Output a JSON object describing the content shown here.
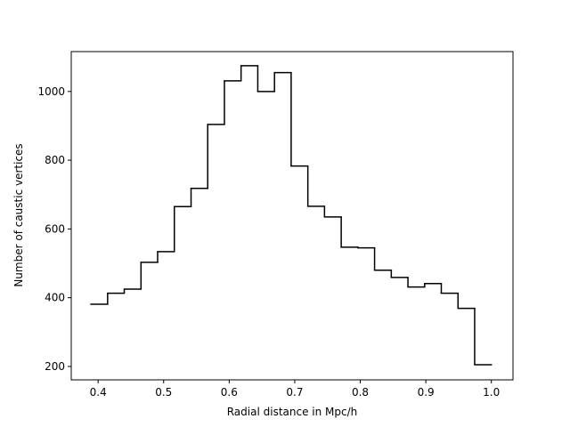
{
  "chart_data": {
    "type": "histogram",
    "x_label": "Radial distance in Mpc/h",
    "y_label": "Number of caustic vertices",
    "bins": [
      0.389,
      0.4145,
      0.4399,
      0.4654,
      0.4908,
      0.5163,
      0.5418,
      0.5672,
      0.5927,
      0.6181,
      0.6436,
      0.6691,
      0.6945,
      0.72,
      0.7454,
      0.7709,
      0.7964,
      0.8218,
      0.8473,
      0.8727,
      0.8982,
      0.9236,
      0.9491,
      0.9745,
      1.0
    ],
    "values": [
      381,
      413,
      425,
      503,
      534,
      665,
      718,
      904,
      1031,
      1075,
      1000,
      1055,
      783,
      666,
      635,
      547,
      545,
      480,
      459,
      431,
      441,
      413,
      369,
      205
    ],
    "color": "#000000",
    "xlim": [
      0.359,
      1.033
    ],
    "ylim": [
      161,
      1116
    ],
    "xticks": [
      0.4,
      0.5,
      0.6,
      0.7,
      0.8,
      0.9,
      {
        "value": 1,
        "label": "1.0"
      }
    ],
    "yticks": [
      200,
      400,
      600,
      800,
      1000
    ]
  }
}
